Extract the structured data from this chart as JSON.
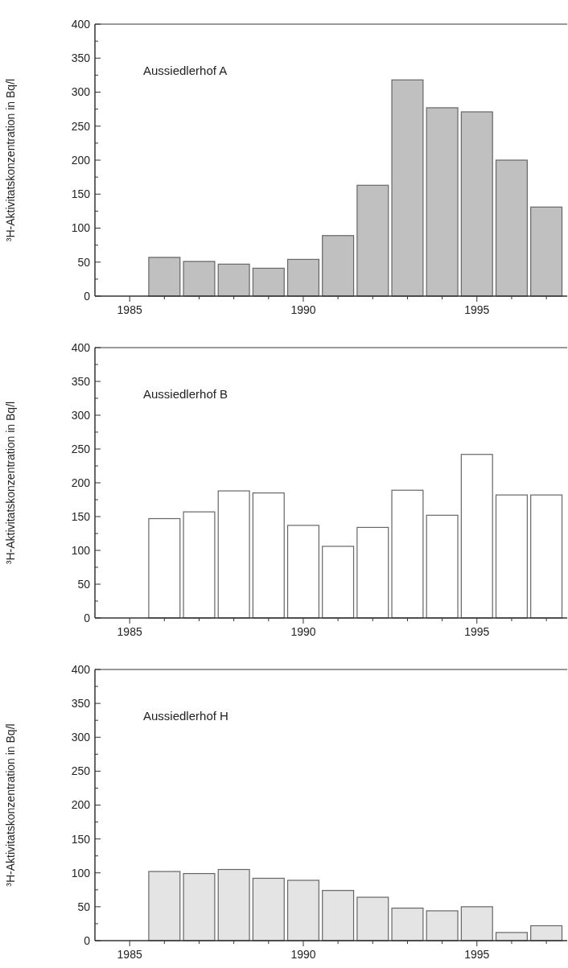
{
  "chart_data": [
    {
      "type": "bar",
      "annotations": [
        "Aussiedlerhof A"
      ],
      "ylabel": "³H-Aktivitatskonzentration in Bq/l",
      "x": [
        1986,
        1987,
        1988,
        1989,
        1990,
        1991,
        1992,
        1993,
        1994,
        1995,
        1996,
        1997
      ],
      "series": [
        {
          "color": "#c0c0c0",
          "values": [
            57,
            51,
            47,
            41,
            54,
            89,
            163,
            318,
            277,
            271,
            200,
            131
          ]
        }
      ],
      "xlim": [
        1984,
        1997.6
      ],
      "xticks": [
        {
          "value": 1985,
          "label": "1985"
        },
        {
          "value": 1986,
          "label": null
        },
        {
          "value": 1987,
          "label": null
        },
        {
          "value": 1988,
          "label": null
        },
        {
          "value": 1989,
          "label": null
        },
        {
          "value": 1990,
          "label": "1990"
        },
        {
          "value": 1991,
          "label": null
        },
        {
          "value": 1992,
          "label": null
        },
        {
          "value": 1993,
          "label": null
        },
        {
          "value": 1994,
          "label": null
        },
        {
          "value": 1995,
          "label": "1995"
        },
        {
          "value": 1996,
          "label": null
        },
        {
          "value": 1997,
          "label": null
        }
      ],
      "ylim": [
        0,
        400
      ],
      "yticks": [
        0,
        {
          "value": 25,
          "label": null
        },
        50,
        {
          "value": 75,
          "label": null
        },
        100,
        {
          "value": 125,
          "label": null
        },
        150,
        {
          "value": 175,
          "label": null
        },
        200,
        {
          "value": 225,
          "label": null
        },
        250,
        {
          "value": 275,
          "label": null
        },
        300,
        {
          "value": 325,
          "label": null
        },
        350,
        {
          "value": 375,
          "label": null
        },
        400
      ]
    },
    {
      "type": "bar",
      "annotations": [
        "Aussiedlerhof B"
      ],
      "ylabel": "³H-Aktivitatskonzentration in Bq/l",
      "x": [
        1986,
        1987,
        1988,
        1989,
        1990,
        1991,
        1992,
        1993,
        1994,
        1995,
        1996,
        1997
      ],
      "series": [
        {
          "color": "#ffffff",
          "values": [
            147,
            157,
            188,
            185,
            137,
            106,
            134,
            189,
            152,
            242,
            182,
            182
          ]
        }
      ],
      "xlim": [
        1984,
        1997.6
      ],
      "xticks": [
        {
          "value": 1985,
          "label": "1985"
        },
        {
          "value": 1986,
          "label": null
        },
        {
          "value": 1987,
          "label": null
        },
        {
          "value": 1988,
          "label": null
        },
        {
          "value": 1989,
          "label": null
        },
        {
          "value": 1990,
          "label": "1990"
        },
        {
          "value": 1991,
          "label": null
        },
        {
          "value": 1992,
          "label": null
        },
        {
          "value": 1993,
          "label": null
        },
        {
          "value": 1994,
          "label": null
        },
        {
          "value": 1995,
          "label": "1995"
        },
        {
          "value": 1996,
          "label": null
        },
        {
          "value": 1997,
          "label": null
        }
      ],
      "ylim": [
        0,
        400
      ],
      "yticks": [
        0,
        {
          "value": 25,
          "label": null
        },
        50,
        {
          "value": 75,
          "label": null
        },
        100,
        {
          "value": 125,
          "label": null
        },
        150,
        {
          "value": 175,
          "label": null
        },
        200,
        {
          "value": 225,
          "label": null
        },
        250,
        {
          "value": 275,
          "label": null
        },
        300,
        {
          "value": 325,
          "label": null
        },
        350,
        {
          "value": 375,
          "label": null
        },
        400
      ]
    },
    {
      "type": "bar",
      "annotations": [
        "Aussiedlerhof H"
      ],
      "ylabel": "³H-Aktivitatskonzentration in Bq/l",
      "x": [
        1986,
        1987,
        1988,
        1989,
        1990,
        1991,
        1992,
        1993,
        1994,
        1995,
        1996,
        1997
      ],
      "series": [
        {
          "color": "#e4e4e4",
          "values": [
            102,
            99,
            105,
            92,
            89,
            74,
            64,
            48,
            44,
            50,
            12,
            22
          ]
        }
      ],
      "xlim": [
        1984,
        1997.6
      ],
      "xticks": [
        {
          "value": 1985,
          "label": "1985"
        },
        {
          "value": 1986,
          "label": null
        },
        {
          "value": 1987,
          "label": null
        },
        {
          "value": 1988,
          "label": null
        },
        {
          "value": 1989,
          "label": null
        },
        {
          "value": 1990,
          "label": "1990"
        },
        {
          "value": 1991,
          "label": null
        },
        {
          "value": 1992,
          "label": null
        },
        {
          "value": 1993,
          "label": null
        },
        {
          "value": 1994,
          "label": null
        },
        {
          "value": 1995,
          "label": "1995"
        },
        {
          "value": 1996,
          "label": null
        },
        {
          "value": 1997,
          "label": null
        }
      ],
      "ylim": [
        0,
        400
      ],
      "yticks": [
        0,
        {
          "value": 25,
          "label": null
        },
        50,
        {
          "value": 75,
          "label": null
        },
        100,
        {
          "value": 125,
          "label": null
        },
        150,
        {
          "value": 175,
          "label": null
        },
        200,
        {
          "value": 225,
          "label": null
        },
        250,
        {
          "value": 275,
          "label": null
        },
        300,
        {
          "value": 325,
          "label": null
        },
        350,
        {
          "value": 375,
          "label": null
        },
        400
      ]
    }
  ]
}
